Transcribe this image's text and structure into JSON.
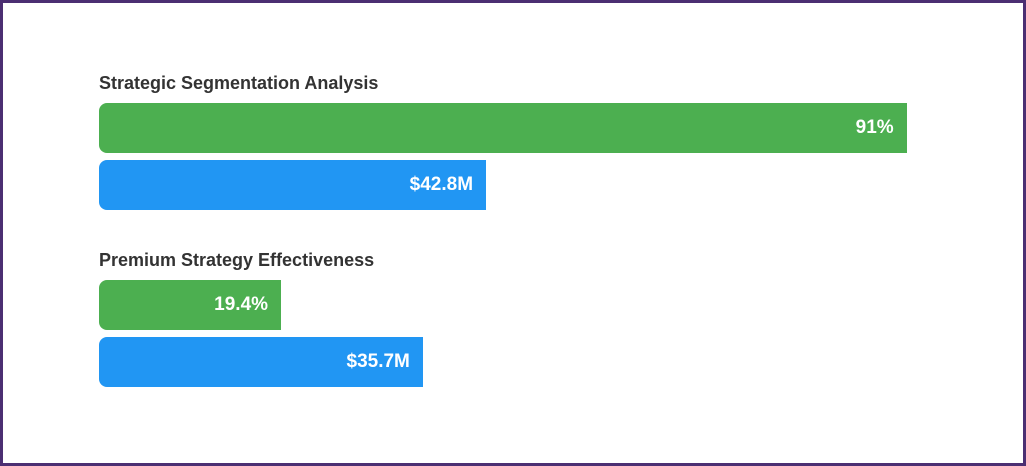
{
  "colors": {
    "percent_bar": "#4caf50",
    "value_bar": "#2196f3",
    "border": "#4b2e72"
  },
  "chart_data": {
    "type": "bar",
    "orientation": "horizontal",
    "groups": [
      {
        "title": "Strategic Segmentation Analysis",
        "bars": [
          {
            "label": "91%",
            "value": 91,
            "unit": "percent",
            "fill": 0.985
          },
          {
            "label": "$42.8M",
            "value": 42.8,
            "unit": "$M",
            "fill": 0.472
          }
        ]
      },
      {
        "title": "Premium Strategy Effectiveness",
        "bars": [
          {
            "label": "19.4%",
            "value": 19.4,
            "unit": "percent",
            "fill": 0.222
          },
          {
            "label": "$35.7M",
            "value": 35.7,
            "unit": "$M",
            "fill": 0.395
          }
        ]
      }
    ]
  }
}
